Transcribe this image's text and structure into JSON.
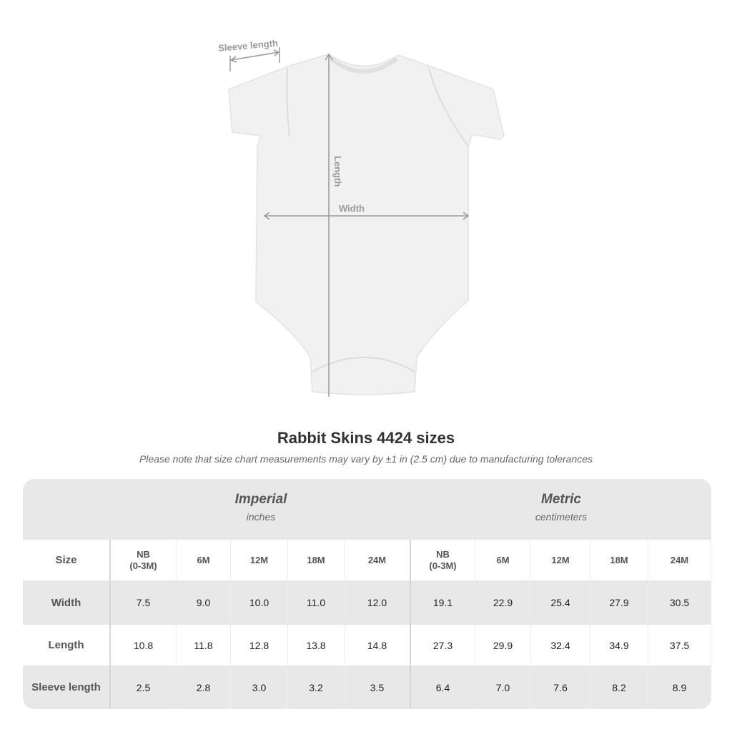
{
  "diagram": {
    "labels": {
      "sleeve": "Sleeve length",
      "length": "Length",
      "width": "Width"
    },
    "garment_color": "#f2f2f2",
    "measure_line_color": "#999999"
  },
  "title": "Rabbit Skins 4424 sizes",
  "note": "Please note that size chart measurements may vary by ±1 in (2.5 cm) due to manufacturing tolerances",
  "table": {
    "imperial": {
      "name": "Imperial",
      "unit": "inches"
    },
    "metric": {
      "name": "Metric",
      "unit": "centimeters"
    },
    "size_label": "Size",
    "sizes": [
      "NB\n(0-3M)",
      "6M",
      "12M",
      "18M",
      "24M"
    ],
    "rows": [
      {
        "label": "Width",
        "imperial": [
          "7.5",
          "9.0",
          "10.0",
          "11.0",
          "12.0"
        ],
        "metric": [
          "19.1",
          "22.9",
          "25.4",
          "27.9",
          "30.5"
        ]
      },
      {
        "label": "Length",
        "imperial": [
          "10.8",
          "11.8",
          "12.8",
          "13.8",
          "14.8"
        ],
        "metric": [
          "27.3",
          "29.9",
          "32.4",
          "34.9",
          "37.5"
        ]
      },
      {
        "label": "Sleeve length",
        "imperial": [
          "2.5",
          "2.8",
          "3.0",
          "3.2",
          "3.5"
        ],
        "metric": [
          "6.4",
          "7.0",
          "7.6",
          "8.2",
          "8.9"
        ]
      }
    ]
  }
}
